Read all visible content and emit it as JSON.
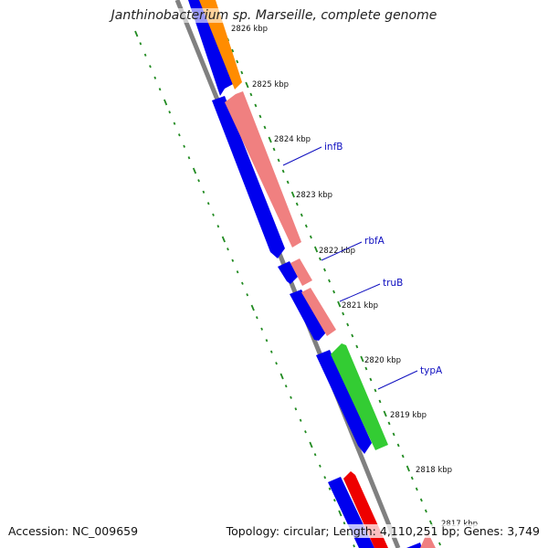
{
  "title": "Janthinobacterium sp. Marseille, complete genome",
  "accession": "Accession: NC_009659",
  "topology": "Topology: circular; Length: 4,110,251 bp; Genes: 3,749",
  "colors": {
    "backbone": "#808080",
    "forward_cds": "#0000ee",
    "rna_salmon": "#f08080",
    "orange": "#ff8c00",
    "green": "#33cc33",
    "red": "#ee0000",
    "gc_ticks": "#228b22",
    "gene_label": "#1010c0"
  },
  "ticks": [
    "2826 kbp",
    "2825 kbp",
    "2824 kbp",
    "2823 kbp",
    "2822 kbp",
    "2821 kbp",
    "2820 kbp",
    "2819 kbp",
    "2818 kbp",
    "2817 kbp"
  ],
  "genes": [
    {
      "name": "infB",
      "color": "salmon"
    },
    {
      "name": "rbfA",
      "color": "salmon"
    },
    {
      "name": "truB",
      "color": "salmon"
    },
    {
      "name": "typA",
      "color": "green"
    }
  ]
}
